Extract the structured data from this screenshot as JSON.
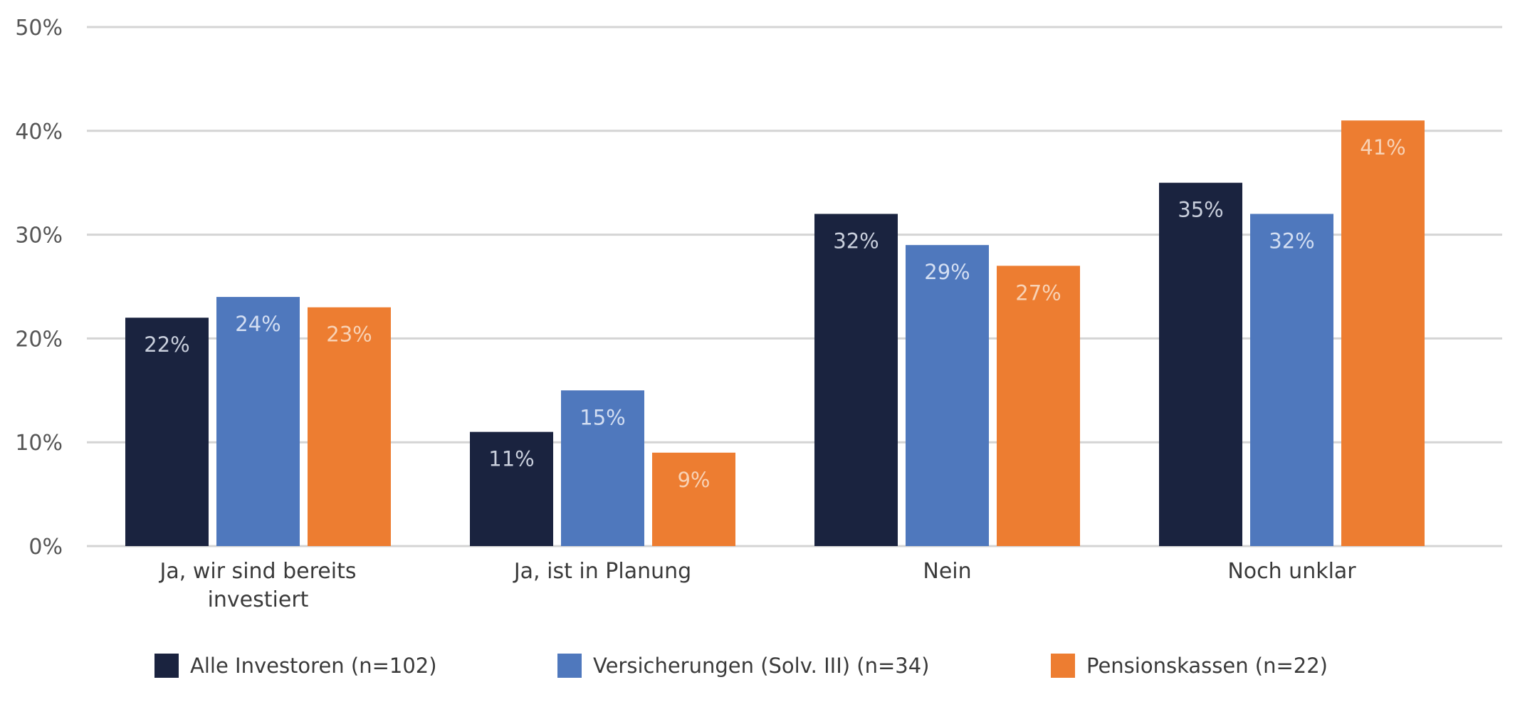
{
  "chart_data": {
    "type": "bar",
    "title": "",
    "xlabel": "",
    "ylabel": "",
    "ylim": [
      0,
      50
    ],
    "yticks": [
      "0%",
      "10%",
      "20%",
      "30%",
      "40%",
      "50%"
    ],
    "ytick_values": [
      0,
      10,
      20,
      30,
      40,
      50
    ],
    "grid": true,
    "legend_position": "bottom",
    "categories": [
      [
        "Ja, wir sind bereits",
        "investiert"
      ],
      [
        "Ja, ist in Planung"
      ],
      [
        "Nein"
      ],
      [
        "Noch unklar"
      ]
    ],
    "series": [
      {
        "name": "Alle Investoren (n=102)",
        "color": "#1a233f",
        "label_color": "#c9cfdc",
        "values": [
          22,
          11,
          32,
          35
        ],
        "labels": [
          "22%",
          "11%",
          "32%",
          "35%"
        ]
      },
      {
        "name": "Versicherungen (Solv. III) (n=34)",
        "color": "#4f78bd",
        "label_color": "#d3def2",
        "values": [
          24,
          15,
          29,
          32
        ],
        "labels": [
          "24%",
          "15%",
          "29%",
          "32%"
        ]
      },
      {
        "name": "Pensionskassen (n=22)",
        "color": "#ed7d31",
        "label_color": "#f8d2b5",
        "values": [
          23,
          9,
          27,
          41
        ],
        "labels": [
          "23%",
          "9%",
          "27%",
          "41%"
        ]
      }
    ]
  }
}
